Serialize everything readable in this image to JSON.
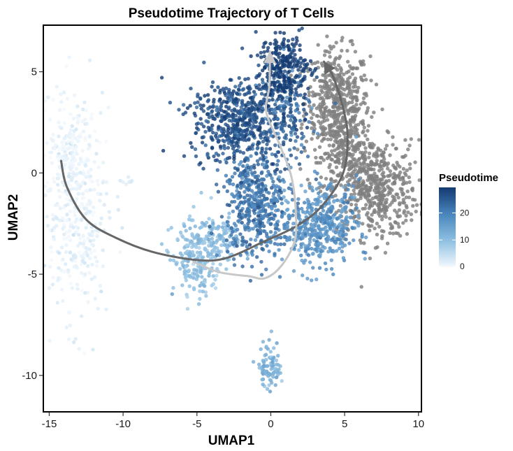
{
  "chart_data": {
    "type": "scatter",
    "title": "Pseudotime Trajectory of T Cells",
    "xlabel": "UMAP1",
    "ylabel": "UMAP2",
    "xlim": [
      -15.4,
      10.2
    ],
    "ylim": [
      -11.8,
      7.3
    ],
    "x_ticks": [
      -15,
      -10,
      -5,
      0,
      5,
      10
    ],
    "y_ticks": [
      5,
      0,
      -5,
      -10
    ],
    "x_tick_labels": [
      "-15",
      "-10",
      "-5",
      "0",
      "5",
      "10"
    ],
    "y_tick_labels": [
      "5",
      "0",
      "-5",
      "-10"
    ],
    "grid": false,
    "legend": {
      "title": "Pseudotime",
      "placement": "right",
      "range": [
        0,
        30
      ],
      "ticks": [
        0,
        10,
        20
      ],
      "tick_labels": [
        "0",
        "10",
        "20"
      ],
      "colors": [
        "#f4f9fe",
        "#8fc0e1",
        "#4a86bd",
        "#143a71"
      ]
    },
    "na_color": "#808080",
    "clusters": [
      {
        "name": "naive-left",
        "cx": -13.2,
        "cy": -2.0,
        "sx": 1.1,
        "sy": 2.6,
        "n": 380,
        "pt": 1.5,
        "pt_sd": 1.2
      },
      {
        "name": "left-top",
        "cx": -13.6,
        "cy": 1.0,
        "sx": 0.8,
        "sy": 1.2,
        "n": 110,
        "pt": 0.8,
        "pt_sd": 0.6
      },
      {
        "name": "small-dot",
        "cx": -9.6,
        "cy": -0.4,
        "sx": 0.25,
        "sy": 0.15,
        "n": 8,
        "pt": 2.5,
        "pt_sd": 0.4
      },
      {
        "name": "mid-low",
        "cx": -5.0,
        "cy": -4.2,
        "sx": 0.8,
        "sy": 0.9,
        "n": 240,
        "pt": 10,
        "pt_sd": 1.8
      },
      {
        "name": "mid-arm",
        "cx": -3.0,
        "cy": -3.2,
        "sx": 0.6,
        "sy": 0.5,
        "n": 80,
        "pt": 11.5,
        "pt_sd": 1.5
      },
      {
        "name": "bottom",
        "cx": -0.1,
        "cy": -9.5,
        "sx": 0.35,
        "sy": 0.65,
        "n": 85,
        "pt": 13,
        "pt_sd": 2.0
      },
      {
        "name": "center",
        "cx": -1.0,
        "cy": -1.5,
        "sx": 1.1,
        "sy": 1.3,
        "n": 450,
        "pt": 22,
        "pt_sd": 2.5
      },
      {
        "name": "center-right",
        "cx": 3.3,
        "cy": -2.5,
        "sx": 1.3,
        "sy": 1.0,
        "n": 450,
        "pt": 18,
        "pt_sd": 2.0
      },
      {
        "name": "upper-left-blob",
        "cx": -2.3,
        "cy": 2.6,
        "sx": 1.5,
        "sy": 1.0,
        "n": 520,
        "pt": 27,
        "pt_sd": 2.0
      },
      {
        "name": "upper-mid",
        "cx": 0.8,
        "cy": 3.0,
        "sx": 1.0,
        "sy": 1.3,
        "n": 200,
        "pt": 24,
        "pt_sd": 3.0
      },
      {
        "name": "top",
        "cx": 0.8,
        "cy": 5.2,
        "sx": 0.9,
        "sy": 0.8,
        "n": 260,
        "pt": 30,
        "pt_sd": 1.5
      },
      {
        "name": "gray-top",
        "cx": 4.5,
        "cy": 3.5,
        "sx": 1.1,
        "sy": 1.3,
        "n": 480,
        "pt": null
      },
      {
        "name": "gray-right",
        "cx": 7.0,
        "cy": -0.8,
        "sx": 1.5,
        "sy": 1.2,
        "n": 520,
        "pt": null
      },
      {
        "name": "gray-mid",
        "cx": 5.2,
        "cy": 1.0,
        "sx": 0.9,
        "sy": 1.0,
        "n": 200,
        "pt": null
      }
    ],
    "trajectories": [
      {
        "color": "#666666",
        "points": [
          [
            -14.2,
            0.6
          ],
          [
            -13.8,
            -0.7
          ],
          [
            -12.5,
            -2.3
          ],
          [
            -10.5,
            -3.2
          ],
          [
            -8.0,
            -3.9
          ],
          [
            -5.0,
            -4.3
          ],
          [
            -3.0,
            -4.2
          ],
          [
            -0.5,
            -3.4
          ],
          [
            1.8,
            -2.6
          ],
          [
            3.5,
            -1.6
          ],
          [
            4.9,
            0.0
          ],
          [
            5.2,
            1.8
          ],
          [
            4.9,
            3.2
          ],
          [
            4.2,
            4.8
          ],
          [
            3.6,
            5.5
          ]
        ],
        "arrow": true
      },
      {
        "color": "#c8c8c8",
        "points": [
          [
            -5.2,
            -4.4
          ],
          [
            -3.5,
            -4.9
          ],
          [
            -1.5,
            -5.1
          ],
          [
            -0.4,
            -5.2
          ],
          [
            0.7,
            -4.6
          ],
          [
            1.6,
            -3.4
          ],
          [
            1.7,
            -2.0
          ],
          [
            1.4,
            -0.2
          ],
          [
            0.6,
            1.4
          ],
          [
            -0.3,
            3.0
          ],
          [
            -0.1,
            4.3
          ],
          [
            -0.05,
            6.0
          ]
        ],
        "arrow": true
      }
    ]
  }
}
